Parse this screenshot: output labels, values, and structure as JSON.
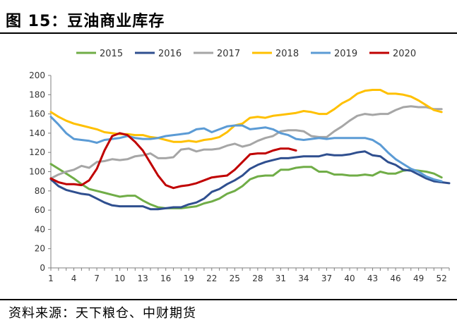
{
  "header": {
    "title": "图 15：豆油商业库存"
  },
  "footer": {
    "source": "资料来源：天下粮仓、中财期货"
  },
  "chart_data": {
    "type": "line",
    "title": "图 15：豆油商业库存",
    "xlabel": "",
    "ylabel": "",
    "xlim": [
      1,
      53
    ],
    "ylim": [
      0,
      200
    ],
    "y_ticks": [
      0,
      20,
      40,
      60,
      80,
      100,
      120,
      140,
      160,
      180,
      200
    ],
    "x_ticks": [
      1,
      4,
      7,
      10,
      13,
      16,
      19,
      22,
      25,
      28,
      31,
      34,
      37,
      40,
      43,
      46,
      49,
      52
    ],
    "grid": false,
    "legend_position": "top",
    "series": [
      {
        "name": "2015",
        "color": "#70AD47",
        "x": [
          1,
          2,
          3,
          4,
          5,
          6,
          7,
          8,
          9,
          10,
          11,
          12,
          13,
          14,
          15,
          16,
          17,
          18,
          19,
          20,
          21,
          22,
          23,
          24,
          25,
          26,
          27,
          28,
          29,
          30,
          31,
          32,
          33,
          34,
          35,
          36,
          37,
          38,
          39,
          40,
          41,
          42,
          43,
          44,
          45,
          46,
          47,
          48,
          49,
          50,
          51,
          52
        ],
        "values": [
          108,
          103,
          98,
          93,
          87,
          82,
          80,
          78,
          76,
          74,
          75,
          75,
          70,
          66,
          63,
          62,
          62,
          62,
          63,
          64,
          67,
          69,
          72,
          77,
          80,
          85,
          92,
          95,
          96,
          96,
          102,
          102,
          104,
          105,
          105,
          100,
          100,
          97,
          97,
          96,
          96,
          97,
          96,
          100,
          98,
          98,
          101,
          102,
          101,
          100,
          98,
          94
        ]
      },
      {
        "name": "2016",
        "color": "#2F4F8F",
        "x": [
          1,
          2,
          3,
          4,
          5,
          6,
          7,
          8,
          9,
          10,
          11,
          12,
          13,
          14,
          15,
          16,
          17,
          18,
          19,
          20,
          21,
          22,
          23,
          24,
          25,
          26,
          27,
          28,
          29,
          30,
          31,
          32,
          33,
          34,
          35,
          36,
          37,
          38,
          39,
          40,
          41,
          42,
          43,
          44,
          45,
          46,
          47,
          48,
          49,
          50,
          51,
          52,
          53
        ],
        "values": [
          92,
          85,
          81,
          79,
          77,
          76,
          72,
          68,
          65,
          64,
          64,
          64,
          64,
          61,
          61,
          62,
          63,
          63,
          66,
          68,
          72,
          79,
          82,
          87,
          91,
          96,
          103,
          107,
          110,
          112,
          114,
          114,
          115,
          116,
          116,
          116,
          118,
          117,
          117,
          118,
          120,
          121,
          117,
          116,
          110,
          107,
          102,
          101,
          97,
          93,
          90,
          89,
          88
        ]
      },
      {
        "name": "2017",
        "color": "#A6A6A6",
        "x": [
          1,
          2,
          3,
          4,
          5,
          6,
          7,
          8,
          9,
          10,
          11,
          12,
          13,
          14,
          15,
          16,
          17,
          18,
          19,
          20,
          21,
          22,
          23,
          24,
          25,
          26,
          27,
          28,
          29,
          30,
          31,
          32,
          33,
          34,
          35,
          36,
          37,
          38,
          39,
          40,
          41,
          42,
          43,
          44,
          45,
          46,
          47,
          48,
          49,
          50,
          51,
          52
        ],
        "values": [
          93,
          97,
          100,
          102,
          106,
          104,
          110,
          111,
          113,
          112,
          113,
          116,
          117,
          119,
          114,
          114,
          115,
          123,
          124,
          121,
          123,
          123,
          124,
          127,
          129,
          126,
          128,
          132,
          135,
          137,
          142,
          143,
          143,
          142,
          137,
          136,
          136,
          142,
          147,
          153,
          158,
          160,
          159,
          160,
          160,
          164,
          167,
          168,
          167,
          167,
          165,
          165
        ]
      },
      {
        "name": "2018",
        "color": "#FFC000",
        "x": [
          1,
          2,
          3,
          4,
          5,
          6,
          7,
          8,
          9,
          10,
          11,
          12,
          13,
          14,
          15,
          16,
          17,
          18,
          19,
          20,
          21,
          22,
          23,
          24,
          25,
          26,
          27,
          28,
          29,
          30,
          31,
          32,
          33,
          34,
          35,
          36,
          37,
          38,
          39,
          40,
          41,
          42,
          43,
          44,
          45,
          46,
          47,
          48,
          49,
          50,
          51,
          52
        ],
        "values": [
          162,
          157,
          153,
          150,
          148,
          146,
          144,
          141,
          140,
          139,
          139,
          138,
          138,
          136,
          135,
          133,
          131,
          131,
          132,
          131,
          133,
          134,
          136,
          141,
          148,
          150,
          156,
          157,
          156,
          158,
          159,
          160,
          161,
          163,
          162,
          160,
          160,
          165,
          171,
          175,
          181,
          184,
          185,
          185,
          181,
          181,
          180,
          178,
          174,
          169,
          164,
          162
        ]
      },
      {
        "name": "2019",
        "color": "#5B9BD5",
        "x": [
          1,
          2,
          3,
          4,
          5,
          6,
          7,
          8,
          9,
          10,
          11,
          12,
          13,
          14,
          15,
          16,
          17,
          18,
          19,
          20,
          21,
          22,
          23,
          24,
          25,
          26,
          27,
          28,
          29,
          30,
          31,
          32,
          33,
          34,
          35,
          36,
          37,
          38,
          39,
          40,
          41,
          42,
          43,
          44,
          45,
          46,
          47,
          48,
          49,
          50,
          51,
          52
        ],
        "values": [
          157,
          149,
          140,
          134,
          133,
          132,
          130,
          133,
          134,
          135,
          137,
          135,
          134,
          134,
          135,
          137,
          138,
          139,
          140,
          144,
          145,
          141,
          144,
          147,
          148,
          148,
          144,
          145,
          146,
          144,
          140,
          138,
          134,
          133,
          134,
          135,
          134,
          135,
          135,
          135,
          135,
          135,
          133,
          128,
          120,
          113,
          108,
          103,
          100,
          95,
          92,
          90
        ]
      },
      {
        "name": "2020",
        "color": "#C00000",
        "x": [
          1,
          2,
          3,
          4,
          5,
          6,
          7,
          8,
          9,
          10,
          11,
          12,
          13,
          14,
          15,
          16,
          17,
          18,
          19,
          20,
          21,
          22,
          23,
          24,
          25,
          26,
          27,
          28,
          29,
          30,
          31,
          32,
          33
        ],
        "values": [
          93,
          89,
          87,
          87,
          86,
          91,
          103,
          122,
          137,
          140,
          138,
          131,
          122,
          109,
          96,
          86,
          83,
          85,
          86,
          88,
          91,
          94,
          95,
          96,
          102,
          110,
          118,
          119,
          119,
          122,
          124,
          124,
          122
        ]
      }
    ]
  }
}
